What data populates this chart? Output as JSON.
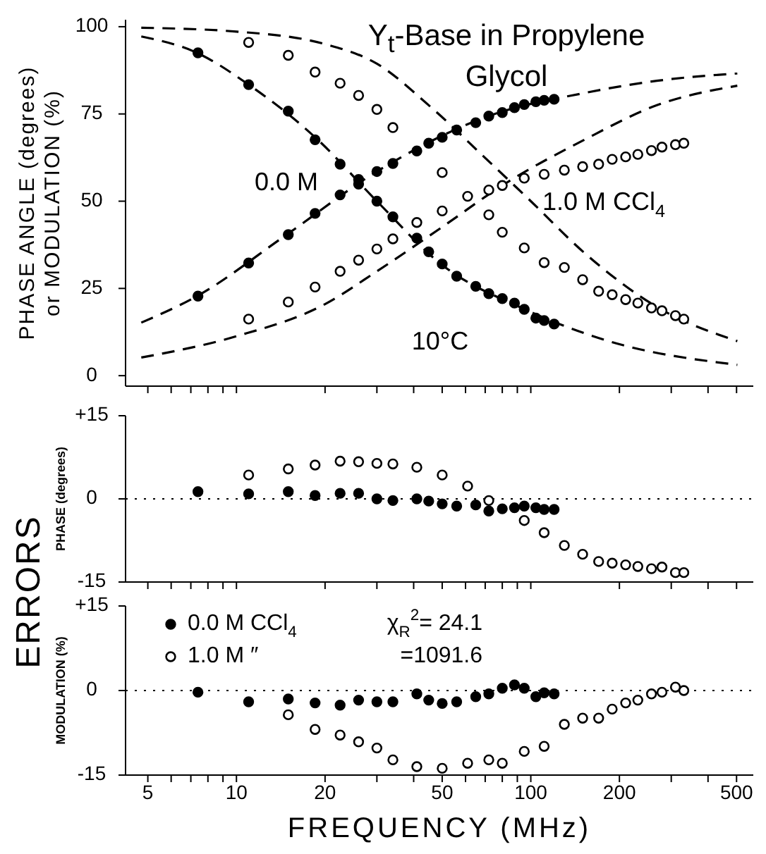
{
  "chart_data": [
    {
      "type": "scatter",
      "title": "Y$_{t}$-Base in Propylene Glycol",
      "ylabel": "PHASE ANGLE (degrees)\nor MODULATION (%)",
      "xlim": [
        4.2,
        570
      ],
      "log": "x",
      "ylim": [
        -3,
        102
      ],
      "yticks": [
        0,
        25,
        50,
        75,
        100
      ],
      "xticks": [
        5,
        {
          "value": 6,
          "label": null
        },
        {
          "value": 7,
          "label": null
        },
        {
          "value": 8,
          "label": null
        },
        {
          "value": 9,
          "label": null
        },
        10,
        20,
        {
          "value": 30,
          "label": null
        },
        {
          "value": 40,
          "label": null
        },
        50,
        {
          "value": 60,
          "label": null
        },
        {
          "value": 70,
          "label": null
        },
        {
          "value": 80,
          "label": null
        },
        {
          "value": 90,
          "label": null
        },
        100,
        200,
        {
          "value": 300,
          "label": null
        },
        {
          "value": 400,
          "label": null
        },
        500
      ],
      "tick_labels": "y",
      "marker": "circle",
      "annotations": [
        "0.0 M",
        "1.0 M CCl$_{4}$",
        "10°C"
      ],
      "series": [
        {
          "type": "line",
          "line_style": "dashed",
          "marker": "none",
          "color": "#000000",
          "x": [
            4.75,
            7.35,
            14.8,
            30,
            72,
            152,
            268,
            503
          ],
          "values": [
            15.2,
            22.8,
            40.4,
            58.5,
            74.4,
            81,
            84.5,
            86.6
          ]
        },
        {
          "type": "line",
          "line_style": "dashed",
          "marker": "none",
          "color": "#000000",
          "x": [
            4.75,
            7.35,
            11,
            18.9,
            30,
            49.5,
            95.5,
            184,
            503
          ],
          "values": [
            97.2,
            92.5,
            83.4,
            67.6,
            50,
            32,
            19,
            9.9,
            3.1
          ]
        },
        {
          "type": "line",
          "line_style": "dashed",
          "marker": "none",
          "color": "#000000",
          "x": [
            4.75,
            10,
            20,
            30,
            50,
            80,
            152,
            268,
            503
          ],
          "values": [
            5.2,
            11.3,
            20.5,
            29.9,
            42.6,
            54.5,
            67.6,
            77.5,
            83.1
          ]
        },
        {
          "type": "line",
          "line_style": "dashed",
          "marker": "none",
          "color": "#000000",
          "x": [
            4.75,
            10,
            20,
            30,
            45,
            70.8,
            100,
            152,
            268,
            503
          ],
          "values": [
            99.7,
            98.6,
            95,
            89.4,
            77.5,
            62,
            50,
            35.2,
            19.7,
            9.9
          ]
        },
        {
          "color": "#000000",
          "x": [
            7.4,
            11,
            15,
            18.5,
            22.5,
            26,
            30,
            34,
            41,
            45,
            50,
            56,
            65,
            72,
            80,
            88,
            95,
            104,
            111,
            120
          ],
          "values": [
            22.8,
            32.3,
            40.4,
            46.5,
            51.8,
            56.2,
            58.5,
            60.8,
            64.4,
            66.6,
            68.3,
            70.4,
            72.5,
            74.4,
            75.4,
            76.8,
            77.7,
            78.5,
            78.9,
            79.2
          ]
        },
        {
          "color": "#000000",
          "x": [
            7.4,
            11,
            15,
            18.5,
            22.5,
            26,
            30,
            34,
            41,
            45,
            50,
            56,
            65,
            72,
            80,
            88,
            95,
            104,
            111,
            120
          ],
          "values": [
            92.5,
            83.4,
            75.8,
            67.6,
            60.6,
            54.9,
            50,
            45.5,
            39.4,
            35.5,
            32,
            28.5,
            25.6,
            23.5,
            22.1,
            20.8,
            19,
            16.5,
            15.8,
            14.8
          ]
        },
        {
          "color": "#ffffff",
          "x": [
            11,
            15,
            18.5,
            22.5,
            26,
            30,
            34,
            41,
            50,
            61,
            72,
            80,
            95,
            111,
            130,
            150,
            170,
            189,
            210,
            231,
            257,
            279,
            310,
            331
          ],
          "values": [
            16.2,
            21.1,
            25.4,
            29.9,
            33.1,
            36.3,
            39.2,
            43.9,
            47.2,
            51.4,
            53.2,
            54.5,
            56.6,
            57.7,
            58.9,
            59.9,
            60.6,
            62,
            62.7,
            63.4,
            64.5,
            65.5,
            66.2,
            66.6
          ]
        },
        {
          "color": "#ffffff",
          "x": [
            11,
            15,
            18.5,
            22.5,
            26,
            30,
            34,
            41,
            50,
            61,
            72,
            80,
            95,
            111,
            130,
            150,
            170,
            189,
            210,
            231,
            257,
            279,
            310,
            331
          ],
          "values": [
            95.5,
            91.8,
            87,
            83.8,
            80.3,
            76.3,
            71.1,
            null,
            58.2,
            null,
            46.1,
            41.1,
            36.6,
            32.4,
            31,
            27.5,
            24.2,
            23.2,
            21.8,
            20.8,
            19.4,
            18.6,
            17.2,
            16.2
          ]
        }
      ]
    },
    {
      "type": "scatter",
      "ylabel": "PHASE (degrees)",
      "annotations": [
        "ERRORS"
      ],
      "xlim": [
        4.2,
        570
      ],
      "log": "x",
      "ylim": [
        -15,
        15
      ],
      "yticks": [
        {
          "value": 15,
          "label": "+15"
        },
        0,
        -15
      ],
      "xticks": [
        5,
        {
          "value": 6,
          "label": null
        },
        {
          "value": 7,
          "label": null
        },
        {
          "value": 8,
          "label": null
        },
        {
          "value": 9,
          "label": null
        },
        10,
        20,
        {
          "value": 30,
          "label": null
        },
        {
          "value": 40,
          "label": null
        },
        50,
        {
          "value": 60,
          "label": null
        },
        {
          "value": 70,
          "label": null
        },
        {
          "value": 80,
          "label": null
        },
        {
          "value": 90,
          "label": null
        },
        100,
        200,
        {
          "value": 300,
          "label": null
        },
        {
          "value": 400,
          "label": null
        },
        500
      ],
      "tick_labels": "y",
      "marker": "circle",
      "ref_lines": [
        {
          "axis": "y",
          "value": 0,
          "color": "#000000",
          "line_style": "dotted"
        }
      ],
      "series": [
        {
          "color": "#000000",
          "x": [
            7.4,
            11,
            15,
            18.5,
            22.5,
            26,
            30,
            34,
            41,
            45,
            50,
            56,
            65,
            72,
            80,
            88,
            95,
            104,
            111,
            120
          ],
          "values": [
            1.3,
            0.9,
            1.3,
            0.6,
            1,
            1,
            0,
            -0.3,
            0,
            -0.4,
            -0.9,
            -1.3,
            -1.1,
            -2.2,
            -1.8,
            -1.6,
            -1.3,
            -1.6,
            -1.9,
            -1.9
          ]
        },
        {
          "color": "#ffffff",
          "x": [
            11,
            15,
            18.5,
            22.5,
            26,
            30,
            34,
            41,
            50,
            61,
            72,
            80,
            95,
            111,
            130,
            150,
            170,
            189,
            210,
            231,
            257,
            279,
            310,
            331
          ],
          "values": [
            4.3,
            5.4,
            6.1,
            6.8,
            6.7,
            6.4,
            6.3,
            5.7,
            4.3,
            2.3,
            -0.3,
            null,
            -3.9,
            -6.1,
            -8.4,
            -10,
            -11.3,
            -11.6,
            -11.9,
            -12.2,
            -12.6,
            -12.3,
            -13.3,
            -13.3
          ]
        }
      ]
    },
    {
      "type": "scatter",
      "ylabel": "MODULATION (%)",
      "xlabel": "FREQUENCY (MHz)",
      "annotations": [
        "χ$_{R}$$^{2}$= 24.1",
        "=1091.6"
      ],
      "legend": "top left",
      "xlim": [
        4.2,
        570
      ],
      "log": "x",
      "ylim": [
        -15,
        15
      ],
      "yticks": [
        {
          "value": 15,
          "label": "+15"
        },
        0,
        -15
      ],
      "xticks": [
        5,
        {
          "value": 6,
          "label": null
        },
        {
          "value": 7,
          "label": null
        },
        {
          "value": 8,
          "label": null
        },
        {
          "value": 9,
          "label": null
        },
        10,
        20,
        {
          "value": 30,
          "label": null
        },
        {
          "value": 40,
          "label": null
        },
        50,
        {
          "value": 60,
          "label": null
        },
        {
          "value": 70,
          "label": null
        },
        {
          "value": 80,
          "label": null
        },
        {
          "value": 90,
          "label": null
        },
        100,
        200,
        {
          "value": 300,
          "label": null
        },
        {
          "value": 400,
          "label": null
        },
        500
      ],
      "marker": "circle",
      "ref_lines": [
        {
          "axis": "y",
          "value": 0,
          "color": "#000000",
          "line_style": "dotted"
        }
      ],
      "series": [
        {
          "name": "0.0 M CCl$_{4}$",
          "color": "#000000",
          "x": [
            7.4,
            11,
            15,
            18.5,
            22.5,
            26,
            30,
            34,
            41,
            45,
            50,
            56,
            65,
            72,
            80,
            88,
            95,
            104,
            111,
            120
          ],
          "values": [
            -0.3,
            -2,
            -1.5,
            -2.2,
            -2.6,
            -1.7,
            -2,
            -2,
            -0.6,
            -1.7,
            -2.3,
            -2,
            -1.1,
            -0.6,
            0.4,
            1,
            0.4,
            -1.1,
            -0.4,
            -0.6
          ]
        },
        {
          "name": "1.0 M ″",
          "color": "#ffffff",
          "x": [
            15,
            18.5,
            22.5,
            26,
            30,
            34,
            41,
            50,
            61,
            72,
            80,
            95,
            111,
            130,
            150,
            170,
            189,
            210,
            231,
            257,
            279,
            310,
            331
          ],
          "values": [
            -4.3,
            -6.9,
            -7.9,
            -9.1,
            -10.2,
            -12.3,
            -13.5,
            -13.8,
            -12.9,
            -12.3,
            -12.9,
            -10.8,
            -9.9,
            -6,
            -4.9,
            -4.9,
            -3.3,
            -2.2,
            -1.7,
            -0.6,
            -0.3,
            0.6,
            0
          ]
        }
      ]
    }
  ]
}
